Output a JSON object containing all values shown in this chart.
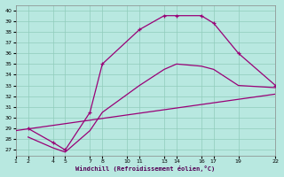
{
  "xlabel": "Windchill (Refroidissement éolien,°C)",
  "background_color": "#b8e8e0",
  "grid_color": "#90ccbb",
  "line_color": "#990077",
  "xlim": [
    1,
    22
  ],
  "ylim": [
    26.5,
    40.5
  ],
  "xticks": [
    1,
    2,
    4,
    5,
    7,
    8,
    10,
    11,
    13,
    14,
    16,
    17,
    19,
    22
  ],
  "yticks": [
    27,
    28,
    29,
    30,
    31,
    32,
    33,
    34,
    35,
    36,
    37,
    38,
    39,
    40
  ],
  "series1_x": [
    2,
    4,
    5,
    7,
    8,
    11,
    13,
    14,
    16,
    17,
    19,
    22
  ],
  "series1_y": [
    29.0,
    27.7,
    27.0,
    30.5,
    35.0,
    38.2,
    39.5,
    39.5,
    39.5,
    38.8,
    36.0,
    33.0
  ],
  "series2_x": [
    2,
    4,
    5,
    7,
    8,
    11,
    13,
    14,
    16,
    17,
    19,
    22
  ],
  "series2_y": [
    28.2,
    27.2,
    26.8,
    28.8,
    30.5,
    33.0,
    34.5,
    35.0,
    34.8,
    34.5,
    33.0,
    32.8
  ],
  "series3_x": [
    1,
    22
  ],
  "series3_y": [
    28.8,
    32.2
  ]
}
